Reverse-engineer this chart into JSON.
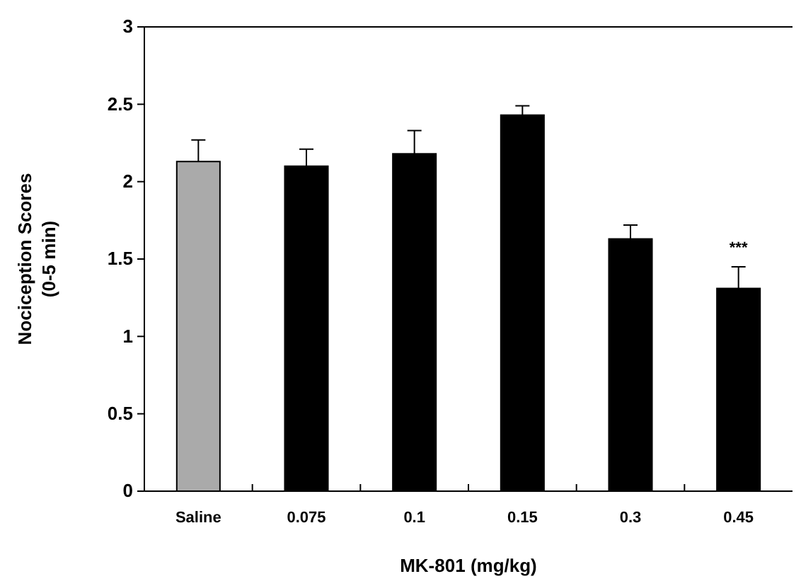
{
  "chart_data": {
    "type": "bar",
    "xlabel": "MK-801 (mg/kg)",
    "ylabel": "Nociception Scores\n(0-5 min)",
    "categories": [
      "Saline",
      "0.075",
      "0.1",
      "0.15",
      "0.3",
      "0.45"
    ],
    "values": [
      2.13,
      2.1,
      2.18,
      2.43,
      1.63,
      1.31
    ],
    "colors": [
      "#aaaaaa",
      "#000000",
      "#000000",
      "#000000",
      "#000000",
      "#000000"
    ],
    "errors": [
      [
        2.13,
        2.27
      ],
      [
        2.1,
        2.21
      ],
      [
        2.18,
        2.33
      ],
      [
        2.43,
        2.49
      ],
      [
        1.63,
        1.72
      ],
      [
        1.31,
        1.45
      ]
    ],
    "ylim": [
      0,
      3
    ],
    "yticks": [
      0,
      0.5,
      1,
      1.5,
      2,
      2.5,
      3
    ],
    "grid": false,
    "annotations": [
      {
        "text": "***",
        "x": "0.45",
        "y": 1.45
      }
    ]
  }
}
